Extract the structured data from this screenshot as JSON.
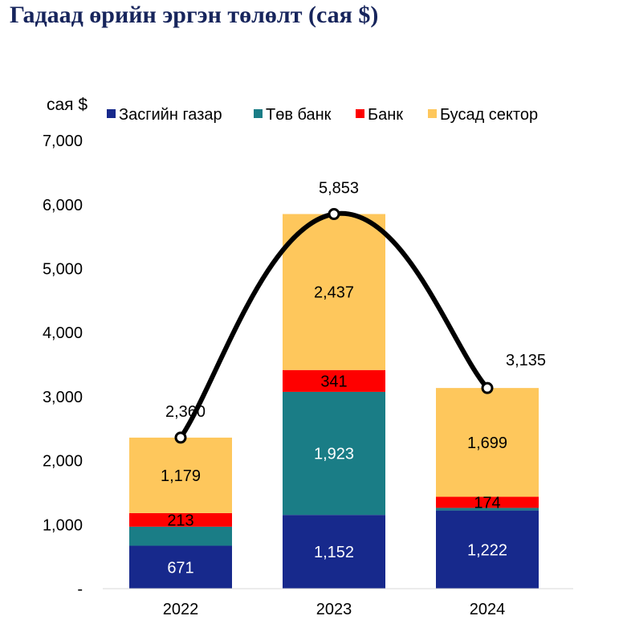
{
  "title": "Гадаад өрийн эргэн төлөлт (сая $)",
  "chart_data": {
    "type": "bar",
    "stacked": true,
    "title": "Гадаад өрийн эргэн төлөлт (сая $)",
    "ylabel": "сая $",
    "ylim": [
      0,
      7000
    ],
    "yticks": [
      {
        "value": 0,
        "label": "-"
      },
      {
        "value": 1000,
        "label": "1,000"
      },
      {
        "value": 2000,
        "label": "2,000"
      },
      {
        "value": 3000,
        "label": "3,000"
      },
      {
        "value": 4000,
        "label": "4,000"
      },
      {
        "value": 5000,
        "label": "5,000"
      },
      {
        "value": 6000,
        "label": "6,000"
      },
      {
        "value": 7000,
        "label": "7,000"
      }
    ],
    "categories": [
      "2022",
      "2023",
      "2024"
    ],
    "series": [
      {
        "name": "Засгийн газар",
        "color": "#17298c",
        "label_color": "#ffffff",
        "values": [
          671,
          1152,
          1222
        ],
        "labels": [
          "671",
          "1,152",
          "1,222"
        ]
      },
      {
        "name": "Төв банк",
        "color": "#1a7d86",
        "label_color": "#ffffff",
        "values": [
          297,
          1923,
          40
        ],
        "labels": [
          "",
          "1,923",
          ""
        ]
      },
      {
        "name": "Банк",
        "color": "#fe0000",
        "label_color": "#000000",
        "values": [
          213,
          341,
          174
        ],
        "labels": [
          "213",
          "341",
          "174"
        ]
      },
      {
        "name": "Бусад сектор",
        "color": "#fec75c",
        "label_color": "#000000",
        "values": [
          1179,
          2437,
          1699
        ],
        "labels": [
          "1,179",
          "2,437",
          "1,699"
        ]
      }
    ],
    "totals": [
      2360,
      5853,
      3135
    ],
    "total_labels": [
      "2,360",
      "5,853",
      "3,135"
    ],
    "total_line_color": "#000000",
    "legend_position": "top",
    "grid": false
  }
}
